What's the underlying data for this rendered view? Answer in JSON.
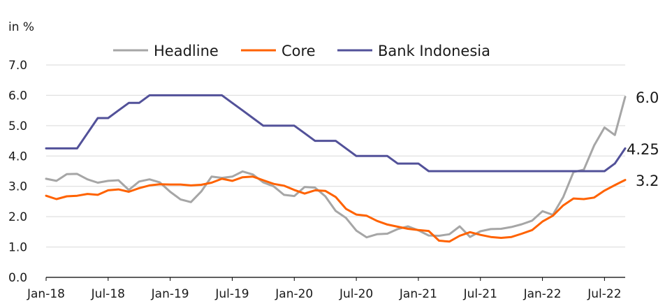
{
  "chart_data": {
    "type": "line",
    "ylabel": "in %",
    "ylim": [
      0,
      7
    ],
    "y_ticks": [
      "0.0",
      "1.0",
      "2.0",
      "3.0",
      "4.0",
      "5.0",
      "6.0",
      "7.0"
    ],
    "x_tick_labels": [
      "Jan-18",
      "Jul-18",
      "Jan-19",
      "Jul-19",
      "Jan-20",
      "Jul-20",
      "Jan-21",
      "Jul-21",
      "Jan-22",
      "Jul-22"
    ],
    "grid": "horizontal",
    "legend_position": "top",
    "x_start": "2018-01",
    "x_end": "2022-09",
    "series": [
      {
        "name": "Headline",
        "color": "#a6a6a6",
        "end_label": "6.0",
        "values": [
          3.25,
          3.18,
          3.4,
          3.41,
          3.23,
          3.12,
          3.18,
          3.2,
          2.88,
          3.16,
          3.23,
          3.13,
          2.82,
          2.57,
          2.48,
          2.83,
          3.32,
          3.28,
          3.32,
          3.49,
          3.39,
          3.13,
          3.0,
          2.72,
          2.68,
          2.98,
          2.96,
          2.67,
          2.19,
          1.96,
          1.54,
          1.32,
          1.42,
          1.44,
          1.59,
          1.68,
          1.55,
          1.38,
          1.37,
          1.42,
          1.68,
          1.33,
          1.52,
          1.59,
          1.6,
          1.66,
          1.75,
          1.87,
          2.18,
          2.06,
          2.64,
          3.47,
          3.55,
          4.35,
          4.94,
          4.69,
          5.95
        ],
        "values_note": ""
      },
      {
        "name": "Core",
        "color": "#ff6200",
        "end_label": "3.2",
        "values": [
          2.69,
          2.58,
          2.67,
          2.69,
          2.75,
          2.72,
          2.87,
          2.9,
          2.82,
          2.94,
          3.03,
          3.07,
          3.06,
          3.06,
          3.03,
          3.05,
          3.12,
          3.25,
          3.18,
          3.3,
          3.32,
          3.2,
          3.08,
          3.02,
          2.88,
          2.76,
          2.87,
          2.85,
          2.65,
          2.26,
          2.07,
          2.03,
          1.86,
          1.74,
          1.67,
          1.6,
          1.56,
          1.53,
          1.21,
          1.18,
          1.37,
          1.49,
          1.4,
          1.33,
          1.3,
          1.33,
          1.44,
          1.56,
          1.84,
          2.03,
          2.37,
          2.6,
          2.58,
          2.63,
          2.86,
          3.04,
          3.21
        ]
      },
      {
        "name": "Bank Indonesia",
        "color": "#525199",
        "end_label": "4.25",
        "values": [
          4.25,
          4.25,
          4.25,
          4.25,
          4.75,
          5.25,
          5.25,
          5.5,
          5.75,
          5.75,
          6.0,
          6.0,
          6.0,
          6.0,
          6.0,
          6.0,
          6.0,
          6.0,
          5.75,
          5.5,
          5.25,
          5.0,
          5.0,
          5.0,
          5.0,
          4.75,
          4.5,
          4.5,
          4.5,
          4.25,
          4.0,
          4.0,
          4.0,
          4.0,
          3.75,
          3.75,
          3.75,
          3.5,
          3.5,
          3.5,
          3.5,
          3.5,
          3.5,
          3.5,
          3.5,
          3.5,
          3.5,
          3.5,
          3.5,
          3.5,
          3.5,
          3.5,
          3.5,
          3.5,
          3.5,
          3.75,
          4.25
        ]
      }
    ]
  }
}
